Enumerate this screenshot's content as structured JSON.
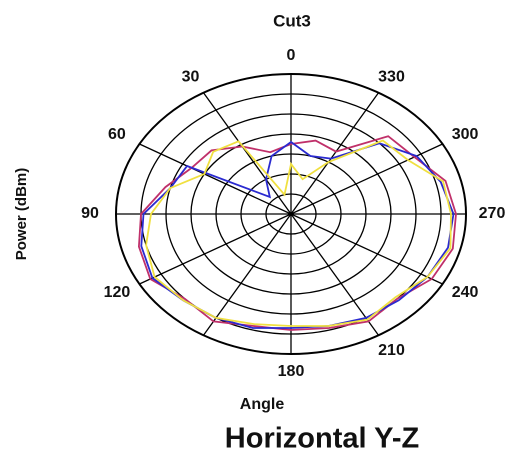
{
  "chart_data": {
    "type": "polar",
    "title": "Cut3",
    "x_label": "Angle",
    "y_label": "Power (dBm)",
    "caption": "Horizontal Y-Z",
    "theta": [
      0,
      15,
      30,
      45,
      60,
      75,
      90,
      105,
      120,
      135,
      150,
      165,
      180,
      195,
      210,
      225,
      240,
      255,
      270,
      285,
      300,
      315,
      330,
      345
    ],
    "thetaticks": [
      0,
      30,
      60,
      90,
      120,
      150,
      180,
      210,
      240,
      270,
      300,
      330
    ],
    "thetaticklabels": [
      0,
      30,
      60,
      90,
      120,
      null,
      180,
      210,
      240,
      270,
      300,
      330
    ],
    "rlim": [
      0,
      7
    ],
    "rticks": [
      1,
      2,
      3,
      4,
      5,
      6,
      7
    ],
    "grid": true,
    "series": [
      {
        "color": "#c0306a",
        "values": [
          3.5,
          3.2,
          3.9,
          4.5,
          4.6,
          5.2,
          6.0,
          6.3,
          6.5,
          6.0,
          6.2,
          5.8,
          5.8,
          5.9,
          6.2,
          6.0,
          6.5,
          6.7,
          6.6,
          6.4,
          5.7,
          5.5,
          3.6,
          3.8
        ]
      },
      {
        "color": "#2a2ad0",
        "values": [
          3.6,
          3.0,
          2.0,
          1.2,
          4.8,
          5.0,
          5.9,
          6.2,
          6.4,
          6.1,
          6.0,
          5.9,
          5.7,
          5.8,
          6.0,
          6.1,
          6.3,
          6.5,
          6.5,
          6.2,
          5.8,
          5.0,
          3.2,
          3.0
        ]
      },
      {
        "color": "#f0e040",
        "values": [
          2.5,
          1.0,
          4.2,
          4.4,
          4.0,
          5.0,
          5.6,
          6.0,
          6.3,
          6.1,
          6.0,
          5.7,
          5.6,
          5.8,
          6.1,
          5.9,
          6.3,
          6.6,
          6.4,
          6.3,
          5.4,
          5.2,
          3.0,
          1.8
        ]
      }
    ]
  }
}
